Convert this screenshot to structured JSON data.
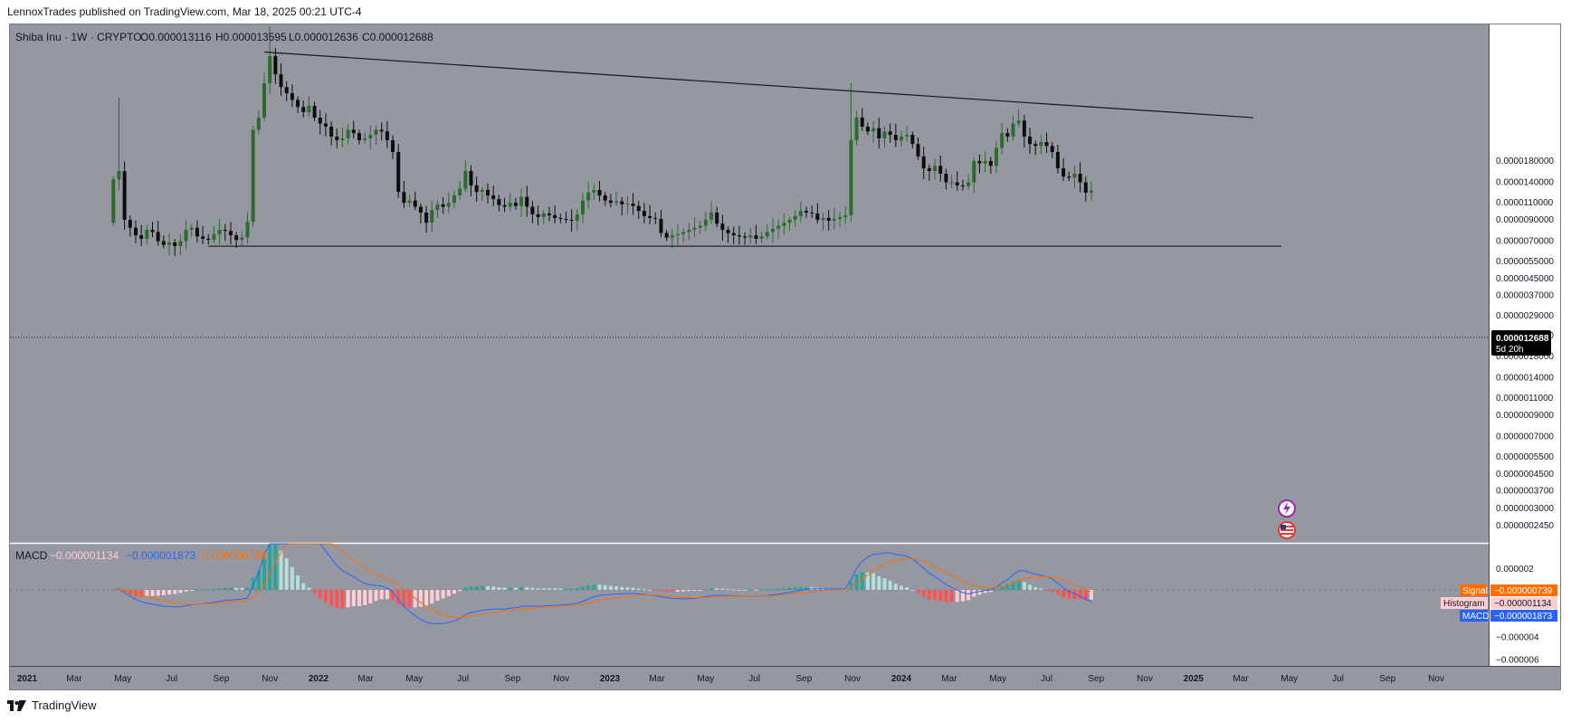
{
  "header": {
    "published": "LennoxTrades published on TradingView.com, Mar 18, 2025 00:21 UTC-4"
  },
  "footer": {
    "brand": "TradingView"
  },
  "symbol": {
    "name": "Shiba Inu · 1W · CRYPTO",
    "open": "O0.000013116",
    "high": "H0.000013595",
    "low": "L0.000012636",
    "close": "C0.000012688"
  },
  "price_label": {
    "value": "0.000012688",
    "countdown": "5d 20h"
  },
  "macd_legend": {
    "title": "MACD",
    "histogram": "−0.000001134",
    "macd": "−0.000001873",
    "signal": "−0.000000739"
  },
  "macd_tags": {
    "signal_label": "Signal",
    "signal_value": "−0.000000739",
    "histogram_label": "Histogram",
    "histogram_value": "−0.000001134",
    "macd_label": "MACD",
    "macd_value": "−0.000001873"
  },
  "colors": {
    "background": "#9598a1",
    "up": "#2e6b2e",
    "down": "#0d0d0d",
    "macd_line": "#2962ff",
    "signal_line": "#ff6d00",
    "hist_pos_strong": "#26a69a",
    "hist_pos_weak": "#b2dfdb",
    "hist_neg_strong": "#ff5252",
    "hist_neg_weak": "#ffcdd2"
  },
  "chart_data": [
    {
      "type": "candlestick",
      "title": "Shiba Inu · 1W · CRYPTO",
      "scale": "log",
      "x_ticks": [
        "2021",
        "Mar",
        "May",
        "Jul",
        "Sep",
        "Nov",
        "2022",
        "Mar",
        "May",
        "Jul",
        "Sep",
        "Nov",
        "2023",
        "Mar",
        "May",
        "Jul",
        "Sep",
        "Nov",
        "2024",
        "Mar",
        "May",
        "Jul",
        "Sep",
        "Nov",
        "2025",
        "Mar",
        "May",
        "Jul",
        "Sep",
        "Nov"
      ],
      "y_ticks": [
        "0.0000180000",
        "0.0000140000",
        "0.0000110000",
        "0.0000090000",
        "0.0000070000",
        "0.0000055000",
        "0.0000045000",
        "0.0000037000",
        "0.0000029000",
        "0.0000023000",
        "0.0000018000",
        "0.0000014000",
        "0.0000011000",
        "0.0000009000",
        "0.0000007000",
        "0.0000005500",
        "0.0000004500",
        "0.0000003700",
        "0.0000003000",
        "0.0000002450"
      ],
      "ylim": [
        "0.0000002000",
        "0.0000900000"
      ],
      "close_series": {
        "start": "2021-04-19",
        "interval": "1W",
        "values": [
          1.45e-05,
          1.6e-05,
          9e-06,
          8.2e-06,
          7.5e-06,
          7.2e-06,
          8e-06,
          7.8e-06,
          7e-06,
          6.7e-06,
          6.9e-06,
          6.6e-06,
          7e-06,
          8e-06,
          8.2e-06,
          7.4e-06,
          7.2e-06,
          7.1e-06,
          7.6e-06,
          8e-06,
          7.9e-06,
          7.5e-06,
          7.1e-06,
          7.3e-06,
          8.8e-06,
          2.6e-05,
          3e-05,
          4.5e-05,
          6.2e-05,
          5e-05,
          4.3e-05,
          4e-05,
          3.7e-05,
          3.4e-05,
          3.2e-05,
          3.45e-05,
          3e-05,
          2.8e-05,
          2.7e-05,
          2.4e-05,
          2.3e-05,
          2.35e-05,
          2.6e-05,
          2.5e-05,
          2.3e-05,
          2.35e-05,
          2.45e-05,
          2.6e-05,
          2.55e-05,
          2.3e-05,
          2e-05,
          1.25e-05,
          1.1e-05,
          1.13e-05,
          1.05e-05,
          9.8e-06,
          8.7e-06,
          1.01e-05,
          1.08e-05,
          1.05e-05,
          1.1e-05,
          1.2e-05,
          1.3e-05,
          1.6e-05,
          1.35e-05,
          1.25e-05,
          1.28e-05,
          1.2e-05,
          1.15e-05,
          1.07e-05,
          1.05e-05,
          1.1e-05,
          1.06e-05,
          1.18e-05,
          1.05e-05,
          9.6e-06,
          9.3e-06,
          9.7e-06,
          9.5e-06,
          9.2e-06,
          9.1e-06,
          9e-06,
          8.9e-06,
          9.6e-06,
          1.13e-05,
          1.24e-05,
          1.28e-05,
          1.2e-05,
          1.13e-05,
          1.1e-05,
          1.12e-05,
          1.08e-05,
          1.09e-05,
          1.06e-05,
          1e-05,
          9.4e-06,
          9.2e-06,
          9.1e-06,
          7.7e-06,
          7.3e-06,
          7.5e-06,
          7.6e-06,
          7.8e-06,
          8e-06,
          8.2e-06,
          8.4e-06,
          9e-06,
          9.8e-06,
          8.6e-06,
          8e-06,
          7.7e-06,
          7.5e-06,
          7.4e-06,
          7.3e-06,
          7.5e-06,
          7.2e-06,
          7.4e-06,
          7.8e-06,
          8.1e-06,
          8.4e-06,
          8.7e-06,
          9e-06,
          9.4e-06,
          1e-05,
          9.8e-06,
          9.7e-06,
          9e-06,
          9.2e-06,
          8.9e-06,
          9.1e-06,
          9.3e-06,
          9.5e-06,
          2.3e-05,
          3e-05,
          2.7e-05,
          2.55e-05,
          2.65e-05,
          2.35e-05,
          2.55e-05,
          2.45e-05,
          2.3e-05,
          2.4e-05,
          2.45e-05,
          2.2e-05,
          1.9e-05,
          1.65e-05,
          1.6e-05,
          1.7e-05,
          1.55e-05,
          1.4e-05,
          1.4e-05,
          1.35e-05,
          1.34e-05,
          1.4e-05,
          1.8e-05,
          1.75e-05,
          1.8e-05,
          1.7e-05,
          2.1e-05,
          2.5e-05,
          2.4e-05,
          2.8e-05,
          2.9e-05,
          2.4e-05,
          2.2e-05,
          2.15e-05,
          2.25e-05,
          2.15e-05,
          2e-05,
          1.65e-05,
          1.5e-05,
          1.48e-05,
          1.55e-05,
          1.4e-05,
          1.24e-05,
          1.27e-05
        ]
      },
      "last_close": "0.000012688",
      "trendlines": [
        {
          "from": [
            "2021-10-25",
            6.5e-05
          ],
          "to": [
            "2025-03-17",
            3e-05
          ]
        },
        {
          "from": [
            "2021-08-16",
            6.6e-06
          ],
          "to": [
            "2025-04-21",
            6.6e-06
          ]
        }
      ]
    },
    {
      "type": "macd",
      "title": "MACD",
      "y_ticks": [
        "0.000002",
        "0.000000",
        "−0.000002",
        "−0.000004",
        "−0.000006"
      ],
      "ylim": [
        -6.5e-06,
        4.2e-06
      ],
      "legend": [
        "Signal",
        "Histogram",
        "MACD"
      ],
      "last_values": {
        "signal": -7.39e-07,
        "histogram": -1.134e-06,
        "macd": -1.873e-06
      }
    }
  ]
}
